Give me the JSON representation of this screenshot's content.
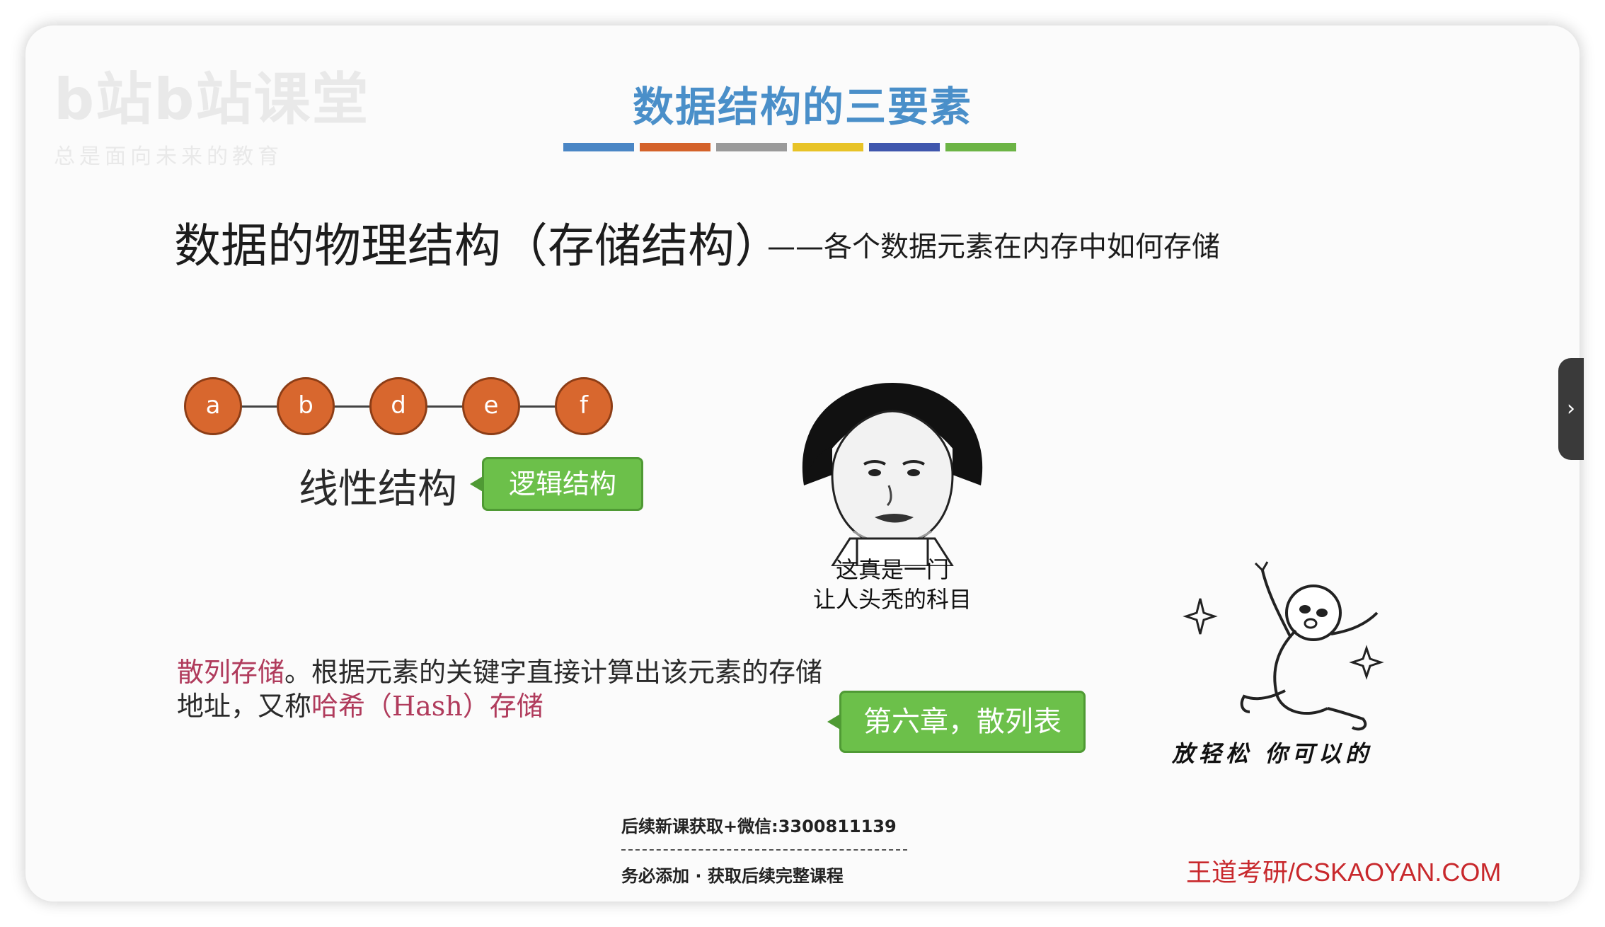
{
  "watermark": {
    "line1": "b站b站课堂",
    "line2": "总是面向未来的教育"
  },
  "slide": {
    "title": "数据结构的三要素",
    "color_bars": [
      "#4a86c5",
      "#d4622a",
      "#9a9a9a",
      "#e8c327",
      "#3f56ad",
      "#6cb445"
    ],
    "subtitle": "数据的物理结构（存储结构）",
    "subtitle_note": "——各个数据元素在内存中如何存储",
    "chain": {
      "nodes": [
        "a",
        "b",
        "d",
        "e",
        "f"
      ],
      "label": "线性结构"
    },
    "callout_logic": "逻辑结构",
    "meme1_caption": [
      "这真是一门",
      "让人头秃的科目"
    ],
    "meme2_caption": "放轻松 你可以的",
    "hash": {
      "term": "散列存储",
      "text1": "。根据元素的关键字直接计算出该元素的存储地址，又称",
      "alias": "哈希（Hash）存储"
    },
    "callout_chapter": "第六章，散列表",
    "footer": {
      "line1": "后续新课获取+微信:3300811139",
      "line2": "务必添加  ·  获取后续完整课程"
    },
    "brand": "王道考研/CSKAOYAN.COM"
  },
  "viewer": {
    "next_icon": "›"
  },
  "icons": {
    "meme_face": "meme-face-icon",
    "meme_dance": "dancing-stickman-icon",
    "next": "chevron-right-icon"
  }
}
